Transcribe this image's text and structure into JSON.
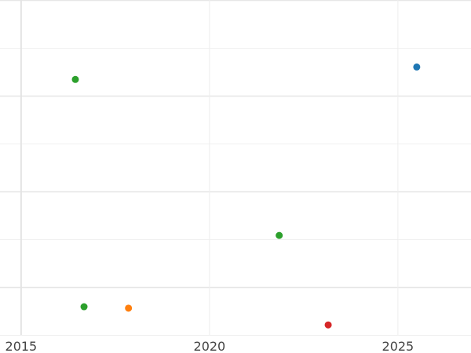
{
  "chart_data": {
    "type": "scatter",
    "title": "",
    "xlabel": "",
    "ylabel": "",
    "xlim": [
      2014.44,
      2026.94
    ],
    "ylim": [
      0,
      7
    ],
    "x_ticks": [
      "2015",
      "2020",
      "2025"
    ],
    "x_tick_values": [
      2015,
      2020,
      2025
    ],
    "y_gridlines": [
      0,
      1,
      2,
      3,
      4,
      5,
      6,
      7
    ],
    "grid": true,
    "legend": "none",
    "points": [
      {
        "x": 2025.5,
        "y": 5.6,
        "color": "#1f77b4"
      },
      {
        "x": 2016.44,
        "y": 5.34,
        "color": "#2ca02c"
      },
      {
        "x": 2021.85,
        "y": 2.08,
        "color": "#2ca02c"
      },
      {
        "x": 2016.67,
        "y": 0.59,
        "color": "#2ca02c"
      },
      {
        "x": 2017.85,
        "y": 0.56,
        "color": "#ff7f0e"
      },
      {
        "x": 2023.15,
        "y": 0.21,
        "color": "#d62728"
      }
    ]
  }
}
